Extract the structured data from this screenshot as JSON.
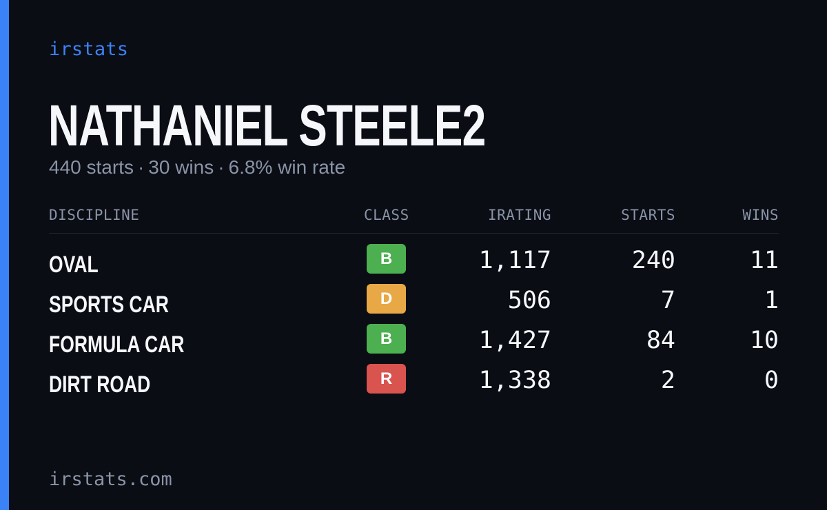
{
  "brand": "irstats",
  "player": {
    "name": "NATHANIEL STEELE2",
    "starts_text": "440 starts",
    "wins_text": "30 wins",
    "winrate_text": "6.8% win rate",
    "separator": "·"
  },
  "table": {
    "headers": {
      "discipline": "DISCIPLINE",
      "class": "CLASS",
      "irating": "IRATING",
      "starts": "STARTS",
      "wins": "WINS"
    },
    "rows": [
      {
        "discipline": "OVAL",
        "class": "B",
        "class_color": "#4caf50",
        "irating": "1,117",
        "starts": "240",
        "wins": "11"
      },
      {
        "discipline": "SPORTS CAR",
        "class": "D",
        "class_color": "#e8a845",
        "irating": "506",
        "starts": "7",
        "wins": "1"
      },
      {
        "discipline": "FORMULA CAR",
        "class": "B",
        "class_color": "#4caf50",
        "irating": "1,427",
        "starts": "84",
        "wins": "10"
      },
      {
        "discipline": "DIRT ROAD",
        "class": "R",
        "class_color": "#d9534f",
        "irating": "1,338",
        "starts": "2",
        "wins": "0"
      }
    ]
  },
  "footer": {
    "url": "irstats.com"
  },
  "colors": {
    "accent": "#3b82f6",
    "background": "#0a0d14",
    "text_primary": "#f5f7fb",
    "text_secondary": "#8b93a7"
  }
}
